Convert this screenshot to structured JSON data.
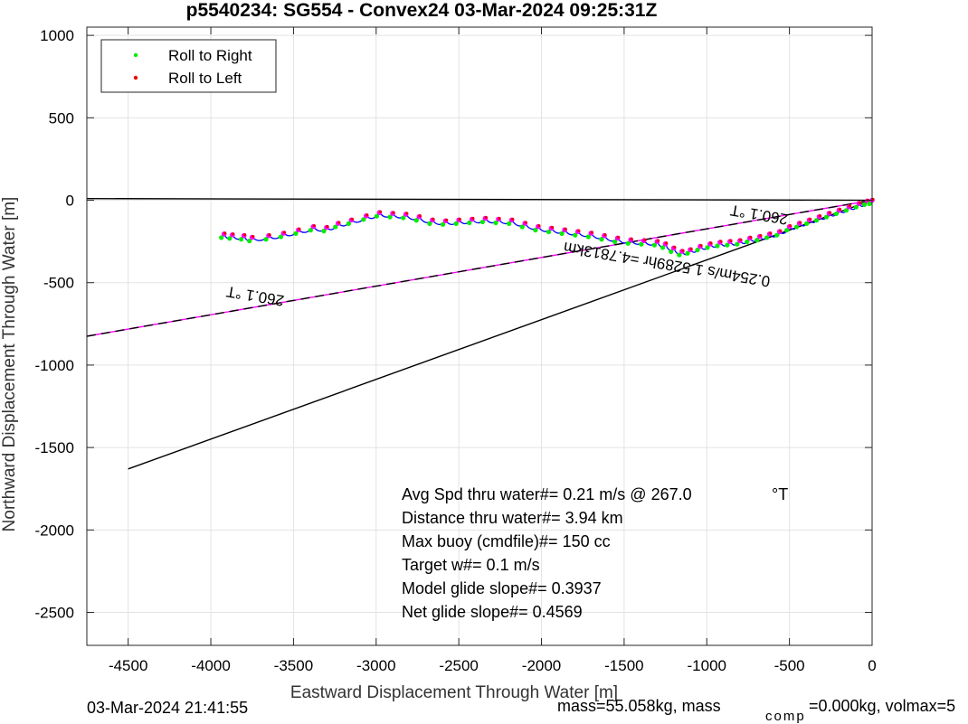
{
  "chart_data": {
    "type": "scatter",
    "title": "p5540234: SG554 - Convex24 03-Mar-2024 09:25:31Z",
    "xlabel": "Eastward Displacement Through Water [m]",
    "ylabel": "Northward Displacement Through Water [m]",
    "xlim": [
      -4750,
      0
    ],
    "ylim": [
      -2700,
      1050
    ],
    "xticks": [
      -4500,
      -4000,
      -3500,
      -3000,
      -2500,
      -2000,
      -1500,
      -1000,
      -500,
      0
    ],
    "yticks": [
      1000,
      500,
      0,
      -500,
      -1000,
      -1500,
      -2000,
      -2500
    ],
    "grid": true,
    "legend_position": "top-left",
    "legend": [
      {
        "label": "Roll to Right",
        "color": "#00ee00"
      },
      {
        "label": "Roll to Left",
        "color": "#ee0000"
      }
    ],
    "colors": {
      "track": "#0000ff",
      "dive_points": "#ff00ff",
      "roll_right": "#00ee00",
      "roll_left": "#ee0000",
      "heading_line": "#ff00ff",
      "reference_lines": "#000000"
    },
    "lines": [
      {
        "name": "",
        "points": [
          [
            -4750,
            10
          ],
          [
            0,
            0
          ]
        ]
      },
      {
        "name": "",
        "points": [
          [
            -4750,
            -825
          ],
          [
            0,
            0
          ]
        ]
      },
      {
        "name": "",
        "points": [
          [
            -4500,
            -1630
          ],
          [
            0,
            0
          ]
        ]
      },
      {
        "name": "",
        "points": [
          [
            -4750,
            -825
          ],
          [
            0,
            0
          ]
        ]
      }
    ],
    "track": [
      [
        -3920,
        -205
      ],
      [
        -3870,
        -210
      ],
      [
        -3800,
        -215
      ],
      [
        -3750,
        -225
      ],
      [
        -3650,
        -215
      ],
      [
        -3560,
        -200
      ],
      [
        -3470,
        -180
      ],
      [
        -3380,
        -160
      ],
      [
        -3300,
        -165
      ],
      [
        -3230,
        -140
      ],
      [
        -3150,
        -120
      ],
      [
        -3060,
        -95
      ],
      [
        -2980,
        -75
      ],
      [
        -2900,
        -80
      ],
      [
        -2820,
        -85
      ],
      [
        -2740,
        -100
      ],
      [
        -2660,
        -120
      ],
      [
        -2580,
        -125
      ],
      [
        -2500,
        -120
      ],
      [
        -2420,
        -115
      ],
      [
        -2340,
        -110
      ],
      [
        -2260,
        -115
      ],
      [
        -2180,
        -120
      ],
      [
        -2100,
        -140
      ],
      [
        -2020,
        -160
      ],
      [
        -1940,
        -170
      ],
      [
        -1860,
        -180
      ],
      [
        -1780,
        -190
      ],
      [
        -1700,
        -200
      ],
      [
        -1620,
        -215
      ],
      [
        -1540,
        -230
      ],
      [
        -1460,
        -240
      ],
      [
        -1380,
        -245
      ],
      [
        -1300,
        -250
      ],
      [
        -1250,
        -265
      ],
      [
        -1200,
        -290
      ],
      [
        -1150,
        -310
      ],
      [
        -1100,
        -300
      ],
      [
        -1040,
        -280
      ],
      [
        -980,
        -265
      ],
      [
        -920,
        -255
      ],
      [
        -860,
        -250
      ],
      [
        -800,
        -245
      ],
      [
        -740,
        -230
      ],
      [
        -680,
        -220
      ],
      [
        -620,
        -205
      ],
      [
        -560,
        -190
      ],
      [
        -500,
        -160
      ],
      [
        -440,
        -140
      ],
      [
        -380,
        -120
      ],
      [
        -320,
        -100
      ],
      [
        -260,
        -80
      ],
      [
        -200,
        -60
      ],
      [
        -140,
        -40
      ],
      [
        -80,
        -20
      ],
      [
        -30,
        -5
      ],
      [
        0,
        0
      ]
    ],
    "heading_labels": [
      "260.1 °T",
      "260.1 °T"
    ],
    "track_summary_label": "0.254m/s 1.5289hr =4.7813km",
    "annotations": [
      "Avg Spd thru water#=  0.21 m/s @ 267.0",
      "Distance thru water#=  3.94 km",
      "Max buoy (cmdfile)#= 150 cc",
      "Target w#= 0.1 m/s",
      "Model glide slope#= 0.3937",
      "Net glide slope#= 0.4569"
    ],
    "degree_unit": "°T"
  },
  "footer": {
    "timestamp": "03-Mar-2024 21:41:55",
    "mass_text": "mass=55.058kg, mass",
    "comp_subscript": "comp",
    "mass_rest": "=0.000kg, volmax=5"
  }
}
